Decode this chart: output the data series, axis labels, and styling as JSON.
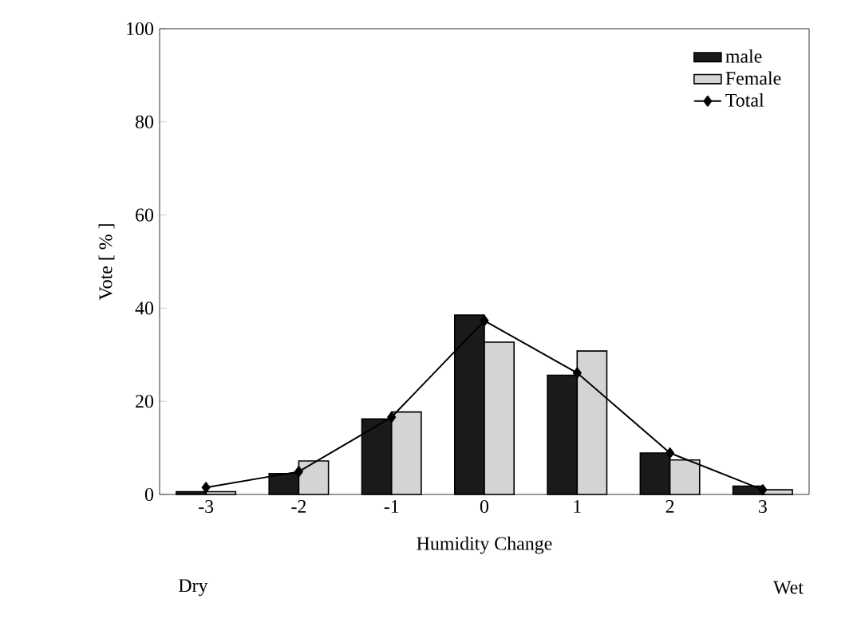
{
  "chart_data": {
    "type": "bar",
    "xlabel": "Humidity Change",
    "ylabel": "Vote [ % ]",
    "categories": [
      "-3",
      "-2",
      "-1",
      "0",
      "1",
      "2",
      "3"
    ],
    "series": [
      {
        "name": "male",
        "color": "#1a1a1a",
        "values": [
          0.6,
          4.5,
          16.2,
          38.5,
          25.6,
          8.9,
          1.8
        ]
      },
      {
        "name": "Female",
        "color": "#d4d4d4",
        "values": [
          0.6,
          7.2,
          17.7,
          32.7,
          30.8,
          7.4,
          1
        ]
      },
      {
        "name": "Total",
        "type": "line",
        "color": "#000000",
        "marker": "diamond",
        "values": [
          1.5,
          4.9,
          16.6,
          37.3,
          26.1,
          8.9,
          1
        ]
      }
    ],
    "ylim": [
      0,
      100
    ],
    "yticks": [
      0,
      20,
      40,
      60,
      80,
      100
    ],
    "legend": "top right",
    "grid": false,
    "annotations": [
      "Dry",
      "Wet"
    ]
  }
}
